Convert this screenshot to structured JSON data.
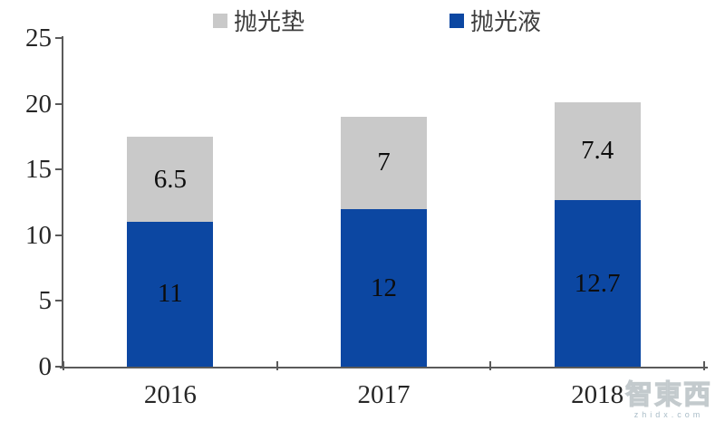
{
  "chart_data": {
    "type": "bar",
    "stacked": true,
    "title": "",
    "categories": [
      "2016",
      "2017",
      "2018"
    ],
    "series": [
      {
        "name": "抛光液",
        "color": "#0C47A2",
        "values": [
          11,
          12,
          12.7
        ]
      },
      {
        "name": "抛光垫",
        "color": "#C9C9C9",
        "values": [
          6.5,
          7,
          7.4
        ]
      }
    ],
    "y_ticks": [
      0,
      5,
      10,
      15,
      20,
      25
    ],
    "ylim": [
      0,
      25
    ],
    "xlabel": "",
    "ylabel": "",
    "grid": false,
    "legend_position": "top"
  },
  "legend": {
    "items": [
      {
        "label": "抛光垫",
        "color": "#C9C9C9"
      },
      {
        "label": "抛光液",
        "color": "#0C47A2"
      }
    ]
  },
  "watermark": {
    "logo": "智東西",
    "url_text": "zhidx.com"
  }
}
